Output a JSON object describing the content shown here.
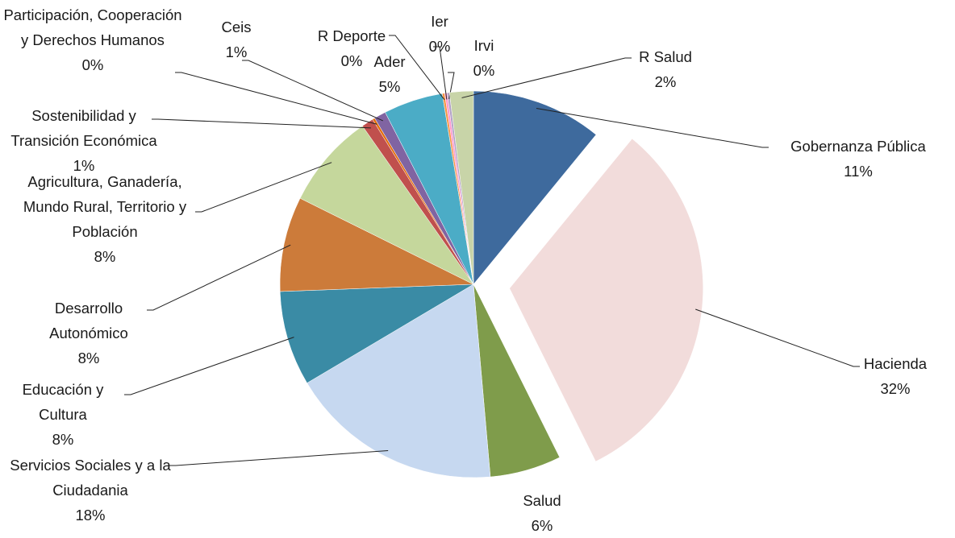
{
  "chart_data": {
    "type": "pie",
    "categories": [
      "Gobernanza Pública",
      "Hacienda",
      "Salud",
      "Servicios Sociales y a la Ciudadania",
      "Educación  y Cultura",
      "Desarrollo Autonómico",
      "Agricultura, Ganadería, Mundo Rural, Territorio y Población",
      "Sostenibilidad y Transición Económica",
      "Participación, Cooperación y Derechos Humanos",
      "Ceis",
      "Ader",
      "R Deporte",
      "Ier",
      "Irvi",
      "R Salud"
    ],
    "values": [
      11,
      32,
      6,
      18,
      8,
      8,
      8,
      1,
      0.2,
      1,
      5,
      0.2,
      0.2,
      0.2,
      2
    ],
    "value_labels": [
      "11%",
      "32%",
      "6%",
      "18%",
      "8%",
      "8%",
      "8%",
      "1%",
      "0%",
      "1%",
      "5%",
      "0%",
      "0%",
      "0%",
      "2%"
    ],
    "colors": [
      "#3e6a9d",
      "#f2dcdb",
      "#7f9c4b",
      "#c6d8f0",
      "#3a8ba5",
      "#cc7b3a",
      "#c5d79c",
      "#c0504d",
      "#e46c0a",
      "#8064a2",
      "#4bacc6",
      "#f79646",
      "#ff99cc",
      "#b3a2c7",
      "#c8d4a8"
    ],
    "exploded": [
      1
    ]
  }
}
